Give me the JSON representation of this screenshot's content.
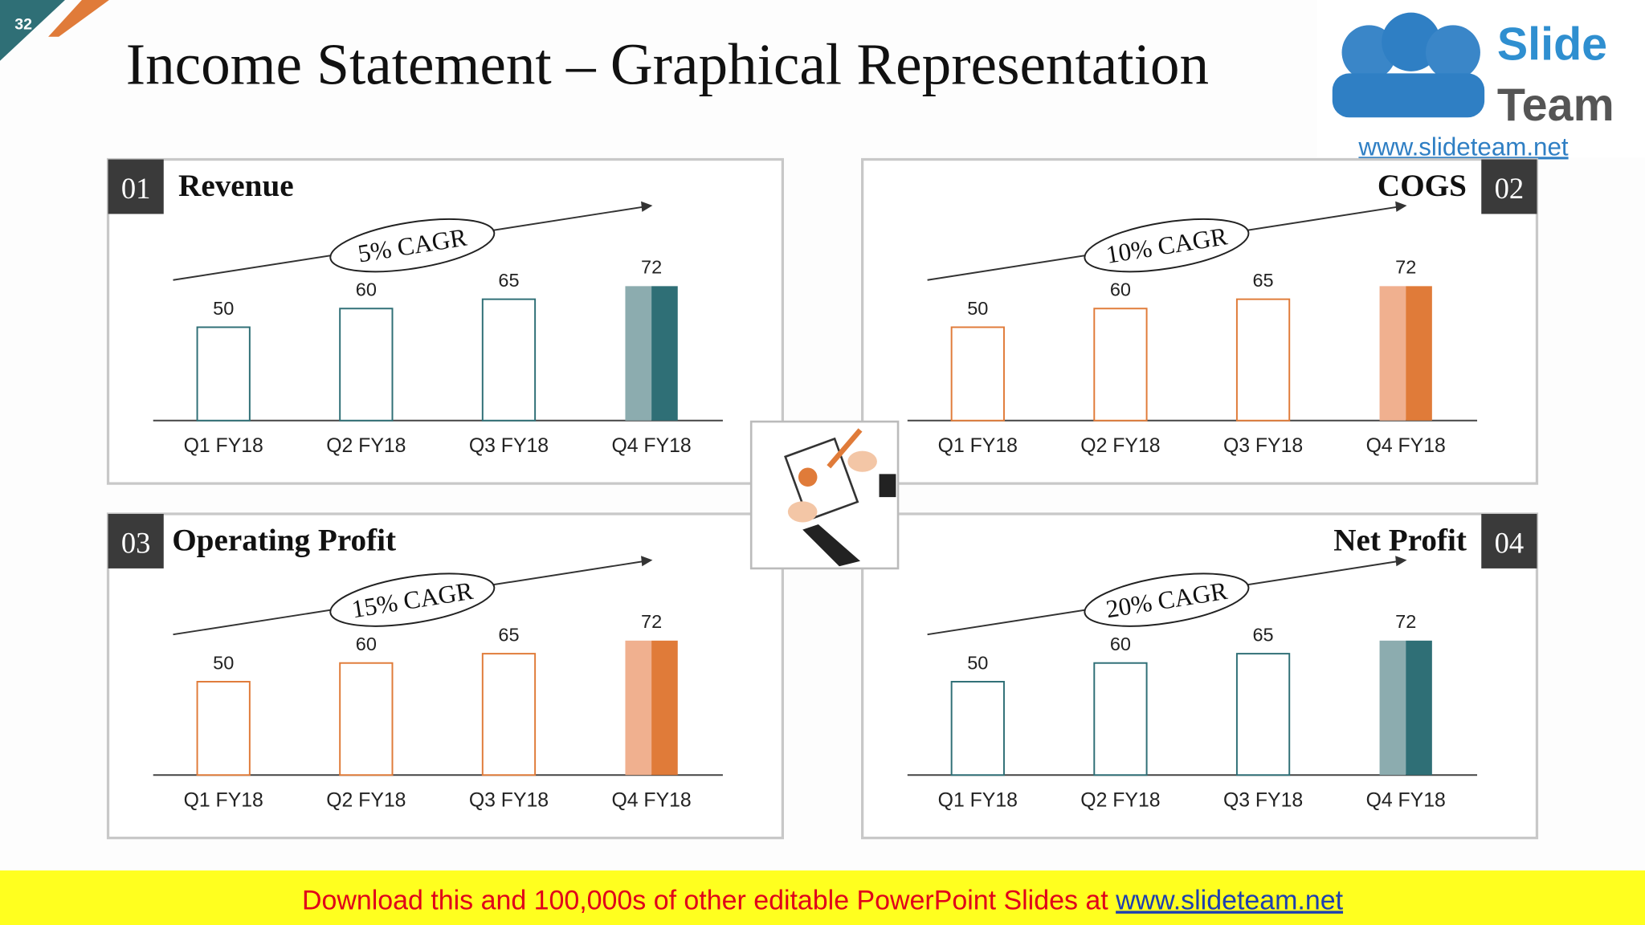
{
  "slide": {
    "number": "32",
    "title": "Income Statement – Graphical Representation",
    "logo": {
      "word1": "Slide",
      "word2": "Team",
      "url": "www.slideteam.net"
    },
    "banner": {
      "text": "Download this and 100,000s of other editable PowerPoint Slides at ",
      "link": "www.slideteam.net"
    }
  },
  "chart_data": [
    {
      "type": "bar",
      "number": "01",
      "title": "Revenue",
      "annotation": "5% CAGR",
      "categories": [
        "Q1 FY18",
        "Q2 FY18",
        "Q3 FY18",
        "Q4 FY18"
      ],
      "values": [
        50,
        60,
        65,
        72
      ],
      "color": "#2f6f76",
      "highlight_color": "#8cacaf"
    },
    {
      "type": "bar",
      "number": "02",
      "title": "COGS",
      "annotation": "10% CAGR",
      "categories": [
        "Q1 FY18",
        "Q2 FY18",
        "Q3 FY18",
        "Q4 FY18"
      ],
      "values": [
        50,
        60,
        65,
        72
      ],
      "color": "#e07b39",
      "highlight_color": "#f0b08f"
    },
    {
      "type": "bar",
      "number": "03",
      "title": "Operating Profit",
      "annotation": "15% CAGR",
      "categories": [
        "Q1 FY18",
        "Q2 FY18",
        "Q3 FY18",
        "Q4 FY18"
      ],
      "values": [
        50,
        60,
        65,
        72
      ],
      "color": "#e07b39",
      "highlight_color": "#f0b08f"
    },
    {
      "type": "bar",
      "number": "04",
      "title": "Net Profit",
      "annotation": "20% CAGR",
      "categories": [
        "Q1 FY18",
        "Q2 FY18",
        "Q3 FY18",
        "Q4 FY18"
      ],
      "values": [
        50,
        60,
        65,
        72
      ],
      "color": "#2f6f76",
      "highlight_color": "#8cacaf"
    }
  ]
}
